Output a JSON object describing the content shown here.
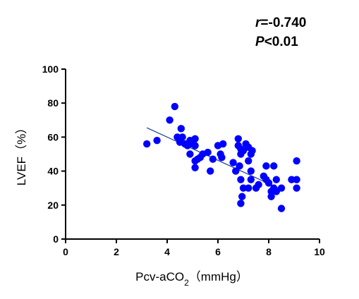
{
  "chart_data": {
    "type": "scatter",
    "title": "",
    "xlabel": "Pcv-aCO",
    "xlabel_subscript": "2",
    "xlabel_suffix": "（mmHg）",
    "ylabel": "LVEF（%）",
    "xlim": [
      0,
      10
    ],
    "ylim": [
      0,
      100
    ],
    "x_ticks": [
      0,
      2,
      4,
      6,
      8,
      10
    ],
    "y_ticks": [
      0,
      20,
      40,
      60,
      80,
      100
    ],
    "grid": false,
    "point_color": "#0000ff",
    "line_color": "#1a3c9c",
    "annotations": {
      "r_symbol": "r",
      "r_value": "=-0.740",
      "p_symbol": "P",
      "p_value": "<0.01"
    },
    "regression_line": {
      "x": [
        3.2,
        8.6
      ],
      "y": [
        65.5,
        28.5
      ]
    },
    "points": [
      {
        "x": 3.2,
        "y": 56
      },
      {
        "x": 3.6,
        "y": 58
      },
      {
        "x": 4.1,
        "y": 70
      },
      {
        "x": 4.3,
        "y": 78
      },
      {
        "x": 4.4,
        "y": 60
      },
      {
        "x": 4.55,
        "y": 65
      },
      {
        "x": 4.6,
        "y": 60
      },
      {
        "x": 4.5,
        "y": 57
      },
      {
        "x": 4.7,
        "y": 56
      },
      {
        "x": 4.8,
        "y": 55
      },
      {
        "x": 4.9,
        "y": 58
      },
      {
        "x": 5.0,
        "y": 56
      },
      {
        "x": 5.1,
        "y": 59
      },
      {
        "x": 5.1,
        "y": 55
      },
      {
        "x": 4.9,
        "y": 50
      },
      {
        "x": 5.1,
        "y": 46
      },
      {
        "x": 5.2,
        "y": 47
      },
      {
        "x": 5.1,
        "y": 42
      },
      {
        "x": 5.3,
        "y": 48
      },
      {
        "x": 5.4,
        "y": 50
      },
      {
        "x": 5.6,
        "y": 51
      },
      {
        "x": 5.7,
        "y": 40
      },
      {
        "x": 5.8,
        "y": 47
      },
      {
        "x": 6.0,
        "y": 55
      },
      {
        "x": 6.1,
        "y": 50
      },
      {
        "x": 6.2,
        "y": 56
      },
      {
        "x": 6.15,
        "y": 48
      },
      {
        "x": 6.6,
        "y": 45
      },
      {
        "x": 6.7,
        "y": 40
      },
      {
        "x": 6.8,
        "y": 59
      },
      {
        "x": 6.8,
        "y": 55
      },
      {
        "x": 6.9,
        "y": 53
      },
      {
        "x": 7.0,
        "y": 52
      },
      {
        "x": 6.9,
        "y": 50
      },
      {
        "x": 6.85,
        "y": 43
      },
      {
        "x": 6.9,
        "y": 35
      },
      {
        "x": 7.0,
        "y": 30
      },
      {
        "x": 6.95,
        "y": 25
      },
      {
        "x": 6.9,
        "y": 21
      },
      {
        "x": 7.1,
        "y": 56
      },
      {
        "x": 7.2,
        "y": 54
      },
      {
        "x": 7.3,
        "y": 50
      },
      {
        "x": 7.35,
        "y": 52
      },
      {
        "x": 7.2,
        "y": 46
      },
      {
        "x": 7.3,
        "y": 40
      },
      {
        "x": 7.3,
        "y": 35
      },
      {
        "x": 7.2,
        "y": 30
      },
      {
        "x": 7.5,
        "y": 30
      },
      {
        "x": 7.6,
        "y": 32
      },
      {
        "x": 7.8,
        "y": 37
      },
      {
        "x": 7.9,
        "y": 43
      },
      {
        "x": 7.9,
        "y": 35
      },
      {
        "x": 8.0,
        "y": 33
      },
      {
        "x": 8.1,
        "y": 28
      },
      {
        "x": 8.1,
        "y": 25
      },
      {
        "x": 8.2,
        "y": 43
      },
      {
        "x": 8.2,
        "y": 30
      },
      {
        "x": 8.3,
        "y": 35
      },
      {
        "x": 8.3,
        "y": 28
      },
      {
        "x": 8.5,
        "y": 18
      },
      {
        "x": 8.5,
        "y": 30
      },
      {
        "x": 8.9,
        "y": 35
      },
      {
        "x": 9.1,
        "y": 46
      },
      {
        "x": 9.1,
        "y": 35
      },
      {
        "x": 9.1,
        "y": 30
      }
    ]
  }
}
